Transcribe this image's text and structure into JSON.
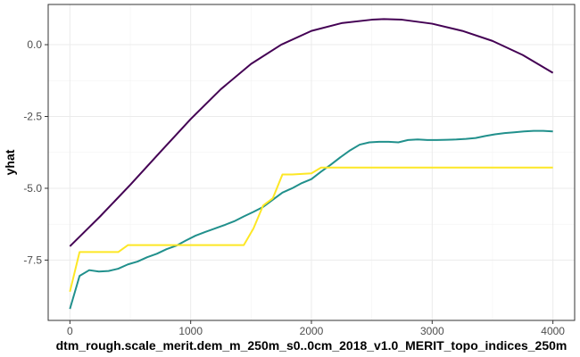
{
  "chart_data": {
    "type": "line",
    "title": "",
    "xlabel": "dtm_rough.scale_merit.dem_m_250m_s0..0cm_2018_v1.0_MERIT_topo_indices_250m",
    "ylabel": "yhat",
    "xlim": [
      -180,
      4180
    ],
    "ylim": [
      -9.6,
      1.4
    ],
    "x_ticks": [
      0,
      1000,
      2000,
      3000,
      4000
    ],
    "x_tick_labels": [
      "0",
      "1000",
      "2000",
      "3000",
      "4000"
    ],
    "y_ticks": [
      0.0,
      -2.5,
      -5.0,
      -7.5
    ],
    "y_tick_labels": [
      "0.0",
      "-2.5",
      "-5.0",
      "-7.5"
    ],
    "grid": true,
    "legend": "none",
    "series": [
      {
        "color": "#440154",
        "x": [
          0,
          250,
          500,
          750,
          1000,
          1250,
          1500,
          1750,
          2000,
          2250,
          2500,
          2600,
          2750,
          3000,
          3250,
          3500,
          3750,
          4000
        ],
        "y": [
          -7.02,
          -5.98,
          -4.88,
          -3.73,
          -2.59,
          -1.55,
          -0.67,
          0.0,
          0.48,
          0.75,
          0.87,
          0.89,
          0.87,
          0.73,
          0.48,
          0.13,
          -0.36,
          -0.98
        ]
      },
      {
        "color": "#21908C",
        "x": [
          0,
          80,
          160,
          240,
          320,
          400,
          480,
          560,
          640,
          720,
          800,
          880,
          960,
          1040,
          1120,
          1200,
          1280,
          1360,
          1440,
          1520,
          1600,
          1680,
          1760,
          1840,
          1920,
          2000,
          2080,
          2160,
          2240,
          2320,
          2400,
          2480,
          2560,
          2640,
          2720,
          2800,
          2880,
          2960,
          3040,
          3120,
          3200,
          3280,
          3360,
          3440,
          3520,
          3600,
          3680,
          3760,
          3840,
          3920,
          4000
        ],
        "y": [
          -9.2,
          -8.05,
          -7.85,
          -7.9,
          -7.88,
          -7.8,
          -7.65,
          -7.55,
          -7.4,
          -7.28,
          -7.12,
          -7.0,
          -6.82,
          -6.65,
          -6.52,
          -6.4,
          -6.28,
          -6.15,
          -5.98,
          -5.82,
          -5.65,
          -5.4,
          -5.15,
          -5.0,
          -4.82,
          -4.68,
          -4.42,
          -4.18,
          -3.92,
          -3.68,
          -3.48,
          -3.4,
          -3.38,
          -3.38,
          -3.4,
          -3.32,
          -3.3,
          -3.32,
          -3.32,
          -3.31,
          -3.3,
          -3.28,
          -3.25,
          -3.18,
          -3.12,
          -3.08,
          -3.05,
          -3.02,
          -3.0,
          -3.0,
          -3.02
        ]
      },
      {
        "color": "#FDE725",
        "x": [
          0,
          80,
          160,
          240,
          320,
          400,
          480,
          560,
          640,
          720,
          800,
          880,
          960,
          1040,
          1120,
          1200,
          1280,
          1360,
          1440,
          1520,
          1600,
          1680,
          1760,
          1840,
          1920,
          2000,
          2080,
          2160,
          2300,
          2500,
          2750,
          3000,
          3250,
          3500,
          3750,
          4000
        ],
        "y": [
          -8.6,
          -7.22,
          -7.22,
          -7.22,
          -7.22,
          -7.22,
          -6.98,
          -6.98,
          -6.98,
          -6.98,
          -6.98,
          -6.98,
          -6.98,
          -6.98,
          -6.98,
          -6.98,
          -6.98,
          -6.98,
          -6.98,
          -6.4,
          -5.6,
          -5.35,
          -4.52,
          -4.52,
          -4.5,
          -4.48,
          -4.28,
          -4.28,
          -4.28,
          -4.28,
          -4.28,
          -4.28,
          -4.28,
          -4.28,
          -4.28,
          -4.28
        ]
      }
    ]
  }
}
